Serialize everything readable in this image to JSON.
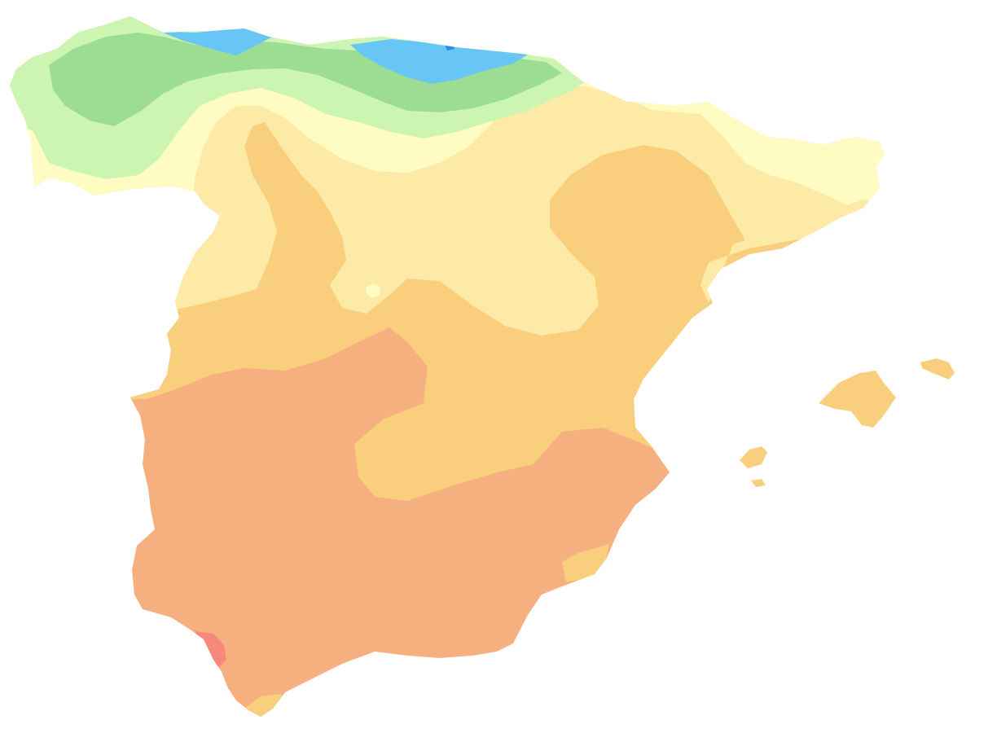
{
  "map": {
    "region": "",
    "zones": [
      {
        "key": "zone-blue",
        "color": "#67c6f5"
      },
      {
        "key": "zone-dark-blue",
        "color": "#2c8de0"
      },
      {
        "key": "zone-green",
        "color": "#9ddd93"
      },
      {
        "key": "zone-light-green",
        "color": "#cbf5b0"
      },
      {
        "key": "zone-pale-yellow",
        "color": "#fefcc3"
      },
      {
        "key": "zone-cream",
        "color": "#fdeaa7"
      },
      {
        "key": "zone-light-orange",
        "color": "#f9cf7e"
      },
      {
        "key": "zone-salmon",
        "color": "#f6b080"
      },
      {
        "key": "zone-red",
        "color": "#f6897b"
      }
    ],
    "background": "#ffffff"
  }
}
